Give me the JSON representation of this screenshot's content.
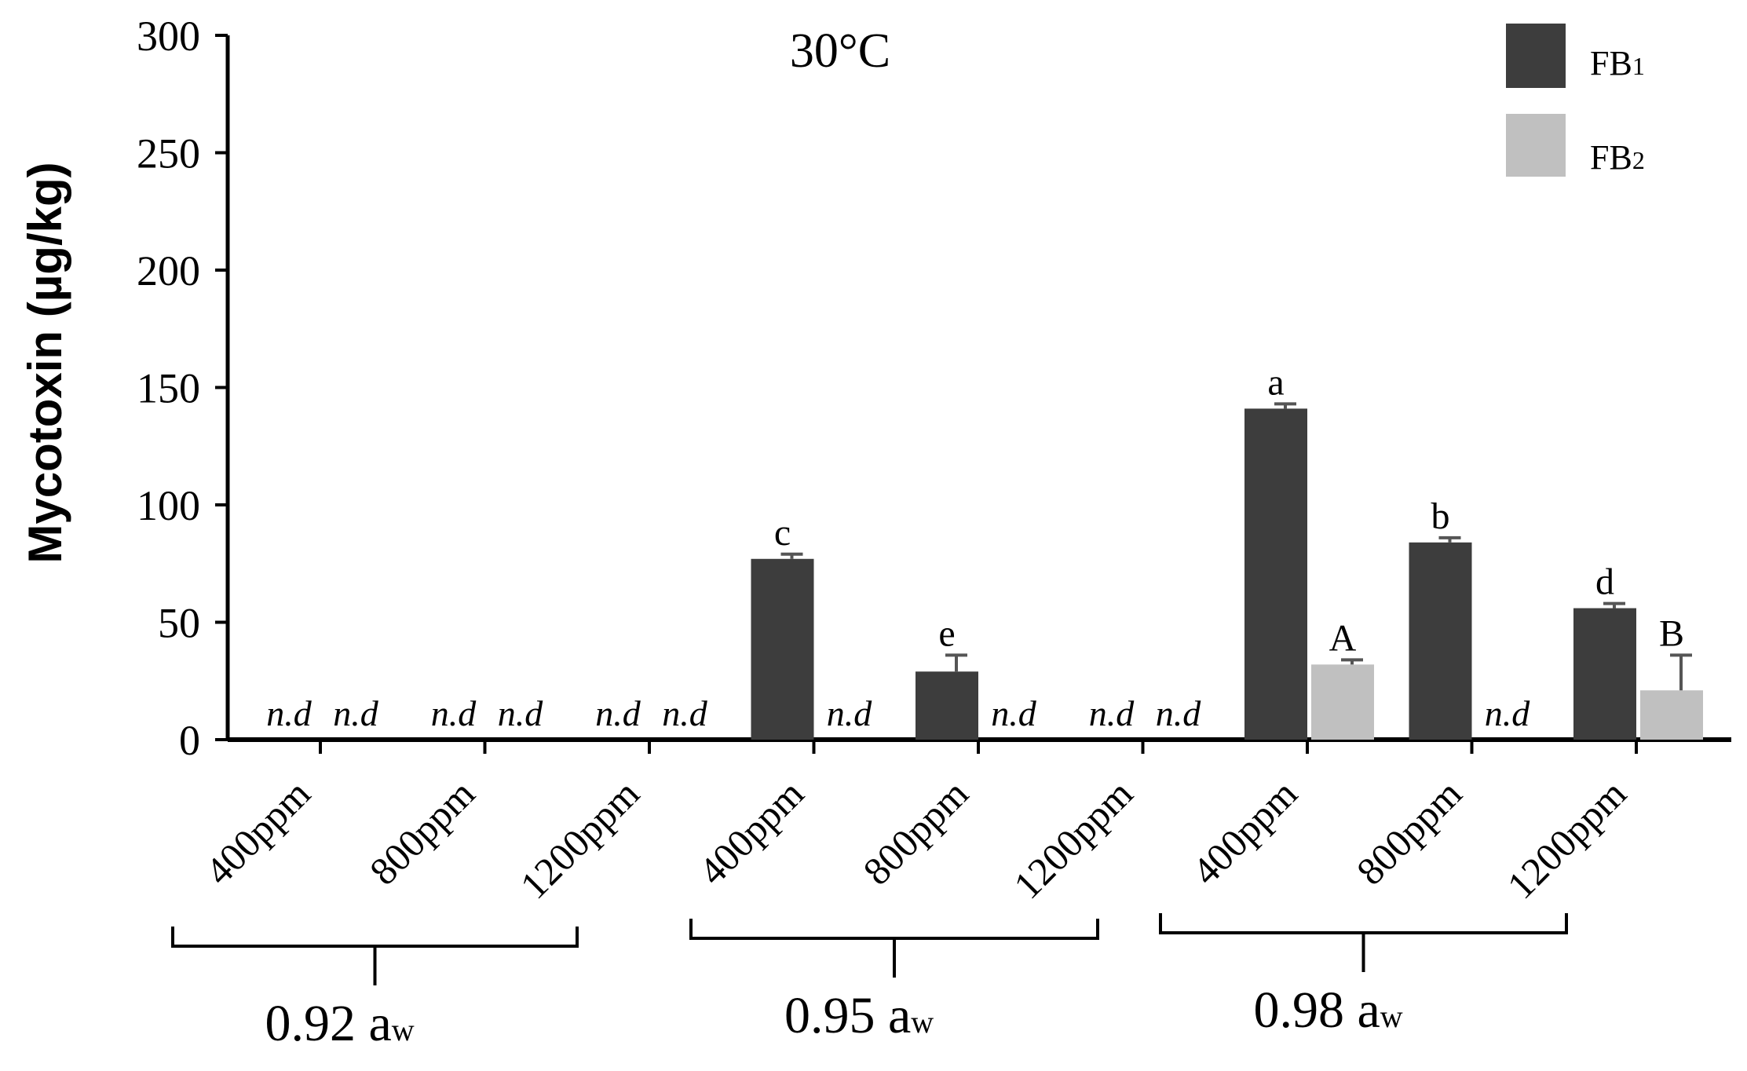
{
  "chart_data": {
    "type": "bar",
    "title": "30°C",
    "ylabel": "Mycotoxin (µg/kg)",
    "xlabel": "",
    "ylim": [
      0,
      300
    ],
    "yticks": [
      "0",
      "50",
      "100",
      "150",
      "200",
      "250",
      "300"
    ],
    "categories": [
      "400ppm",
      "800ppm",
      "1200ppm",
      "400ppm",
      "800ppm",
      "1200ppm",
      "400ppm",
      "800ppm",
      "1200ppm"
    ],
    "groups": [
      {
        "label": "0.92 a",
        "sub": "w"
      },
      {
        "label": "0.95 a",
        "sub": "w"
      },
      {
        "label": "0.98 a",
        "sub": "w"
      }
    ],
    "legend_position": "top-right",
    "series": [
      {
        "name": "FB",
        "sub": "1",
        "color": "#3d3d3d",
        "values": [
          null,
          null,
          null,
          77,
          29,
          null,
          141,
          84,
          56
        ],
        "errors": [
          null,
          null,
          null,
          2,
          7,
          null,
          2,
          2,
          2
        ],
        "letters": [
          "",
          "",
          "",
          "c",
          "e",
          "",
          "a",
          "b",
          "d"
        ]
      },
      {
        "name": "FB",
        "sub": "2",
        "color": "#c0c0c0",
        "values": [
          null,
          null,
          null,
          null,
          null,
          null,
          32,
          null,
          21
        ],
        "errors": [
          null,
          null,
          null,
          null,
          null,
          null,
          2,
          null,
          15
        ],
        "letters": [
          "",
          "",
          "",
          "",
          "",
          "",
          "A",
          "",
          "B"
        ]
      }
    ],
    "not_detected_label": "n.d"
  }
}
